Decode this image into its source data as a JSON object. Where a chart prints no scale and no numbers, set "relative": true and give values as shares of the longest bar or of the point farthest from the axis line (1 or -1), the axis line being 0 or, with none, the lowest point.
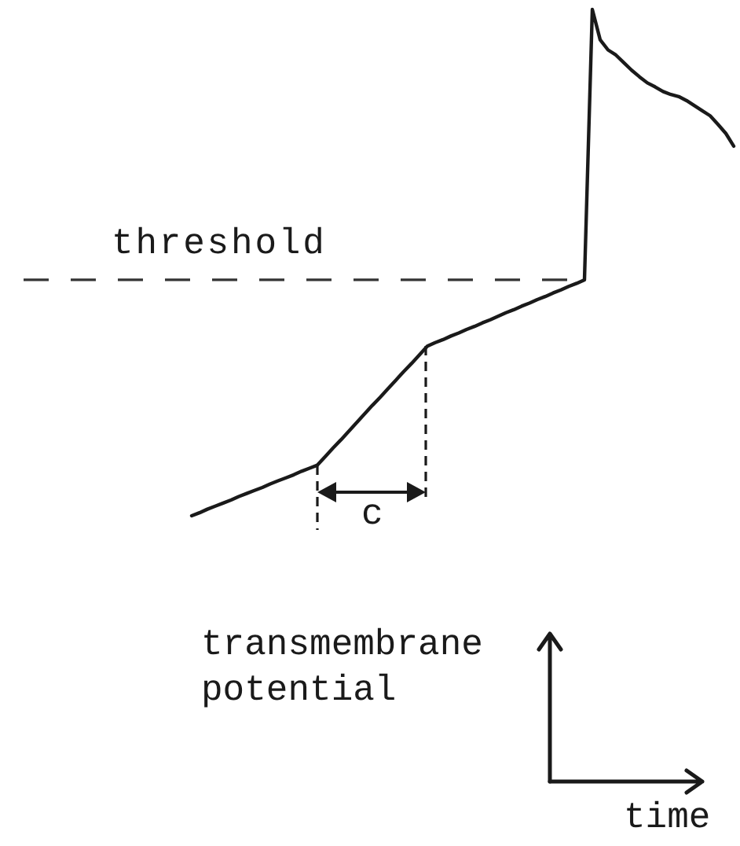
{
  "chart_data": {
    "type": "line",
    "relative": true,
    "tick_labels": false,
    "marker": "none",
    "line_style": "solid",
    "color": "#1a1a1a",
    "categories": [
      null,
      null,
      null,
      null,
      null,
      null,
      null,
      null,
      null,
      null,
      null,
      null,
      null,
      null,
      null,
      null,
      null,
      null,
      null,
      null,
      null,
      null,
      null,
      null,
      null,
      null,
      null,
      null,
      null,
      null,
      null,
      null,
      null,
      null,
      null,
      null,
      null,
      null,
      null,
      null,
      null,
      null,
      null,
      null,
      null,
      null,
      null,
      null,
      null,
      null,
      null,
      null,
      null,
      null,
      null,
      null,
      null,
      null,
      null,
      null,
      null,
      null,
      null,
      null,
      null,
      null,
      null,
      null,
      null,
      null
    ],
    "values": [
      0,
      0.006,
      0.013,
      0.019,
      0.025,
      0.031,
      0.038,
      0.044,
      0.05,
      0.056,
      0.063,
      0.069,
      0.075,
      0.081,
      0.088,
      0.094,
      0.1,
      0.117,
      0.134,
      0.15,
      0.167,
      0.184,
      0.201,
      0.218,
      0.234,
      0.251,
      0.268,
      0.285,
      0.301,
      0.318,
      0.335,
      0.342,
      0.348,
      0.355,
      0.361,
      0.368,
      0.374,
      0.381,
      0.387,
      0.394,
      0.401,
      0.407,
      0.414,
      0.42,
      0.427,
      0.433,
      0.44,
      0.446,
      0.453,
      0.459,
      0.466,
      1,
      0.94,
      0.92,
      0.91,
      0.895,
      0.88,
      0.867,
      0.855,
      0.847,
      0.838,
      0.832,
      0.828,
      0.82,
      0.81,
      0.8,
      0.79,
      0.773,
      0.755,
      0.73
    ],
    "ref_lines": [
      {
        "axis": "y",
        "value": 0.466,
        "label": "threshold",
        "line_style": "dashed",
        "color": "#333333"
      }
    ],
    "annotations": [
      "c",
      "transmembrane potential",
      "time"
    ]
  }
}
